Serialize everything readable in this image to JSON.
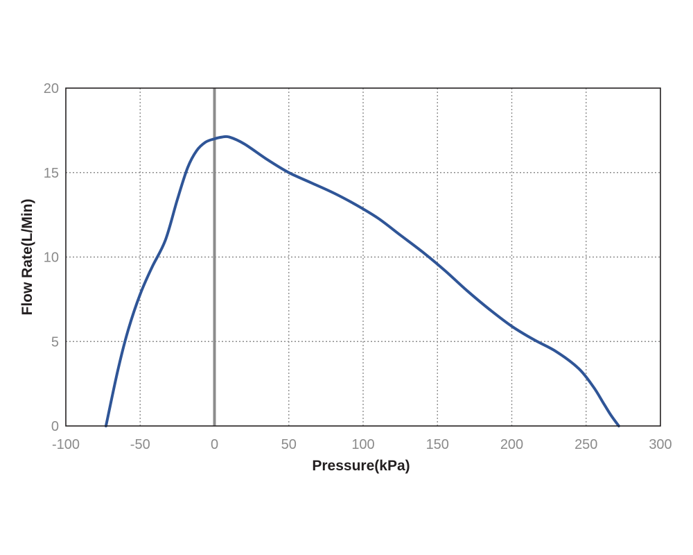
{
  "chart_data": {
    "type": "line",
    "title": "",
    "xlabel": "Pressure(kPa)",
    "ylabel": "Flow Rate(L/Min)",
    "xlim": [
      -100,
      300
    ],
    "ylim": [
      0,
      20
    ],
    "xticks": [
      -100,
      -50,
      0,
      50,
      100,
      150,
      200,
      250,
      300
    ],
    "yticks": [
      0,
      5,
      10,
      15,
      20
    ],
    "xtick_labels": [
      "-100",
      "-50",
      "0",
      "50",
      "100",
      "150",
      "200",
      "250",
      "300"
    ],
    "ytick_labels": [
      "0",
      "5",
      "10",
      "15",
      "20"
    ],
    "grid": true,
    "legend": "none",
    "reference_line_x": 0,
    "series": [
      {
        "color": "#2f5597",
        "x": [
          -73,
          -65,
          -58,
          -50,
          -42,
          -33,
          -25,
          -18,
          -12,
          -6,
          0,
          5,
          10,
          20,
          35,
          50,
          65,
          80,
          95,
          110,
          125,
          140,
          155,
          170,
          185,
          200,
          215,
          230,
          245,
          255,
          262,
          267,
          272
        ],
        "y": [
          0,
          3.3,
          5.7,
          7.8,
          9.4,
          11.0,
          13.4,
          15.3,
          16.3,
          16.8,
          17.0,
          17.1,
          17.1,
          16.7,
          15.8,
          15.0,
          14.4,
          13.8,
          13.1,
          12.3,
          11.3,
          10.3,
          9.2,
          8.0,
          6.9,
          5.9,
          5.1,
          4.4,
          3.4,
          2.3,
          1.3,
          0.6,
          0
        ]
      }
    ]
  }
}
